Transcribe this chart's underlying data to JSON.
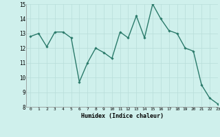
{
  "x": [
    0,
    1,
    2,
    3,
    4,
    5,
    6,
    7,
    8,
    9,
    10,
    11,
    12,
    13,
    14,
    15,
    16,
    17,
    18,
    19,
    20,
    21,
    22,
    23
  ],
  "y": [
    12.8,
    13.0,
    12.1,
    13.1,
    13.1,
    12.7,
    9.7,
    11.0,
    12.0,
    11.7,
    11.3,
    13.1,
    12.7,
    14.2,
    12.7,
    15.0,
    14.0,
    13.2,
    13.0,
    12.0,
    11.8,
    9.5,
    8.6,
    8.2
  ],
  "xlabel": "Humidex (Indice chaleur)",
  "ylim": [
    8,
    15
  ],
  "xlim": [
    -0.5,
    23
  ],
  "yticks": [
    8,
    9,
    10,
    11,
    12,
    13,
    14,
    15
  ],
  "xticks": [
    0,
    1,
    2,
    3,
    4,
    5,
    6,
    7,
    8,
    9,
    10,
    11,
    12,
    13,
    14,
    15,
    16,
    17,
    18,
    19,
    20,
    21,
    22,
    23
  ],
  "line_color": "#2a7a6a",
  "marker_color": "#2a7a6a",
  "bg_color": "#cff0ec",
  "grid_color": "#b8ddd9",
  "marker": "D",
  "markersize": 1.8,
  "linewidth": 1.0
}
